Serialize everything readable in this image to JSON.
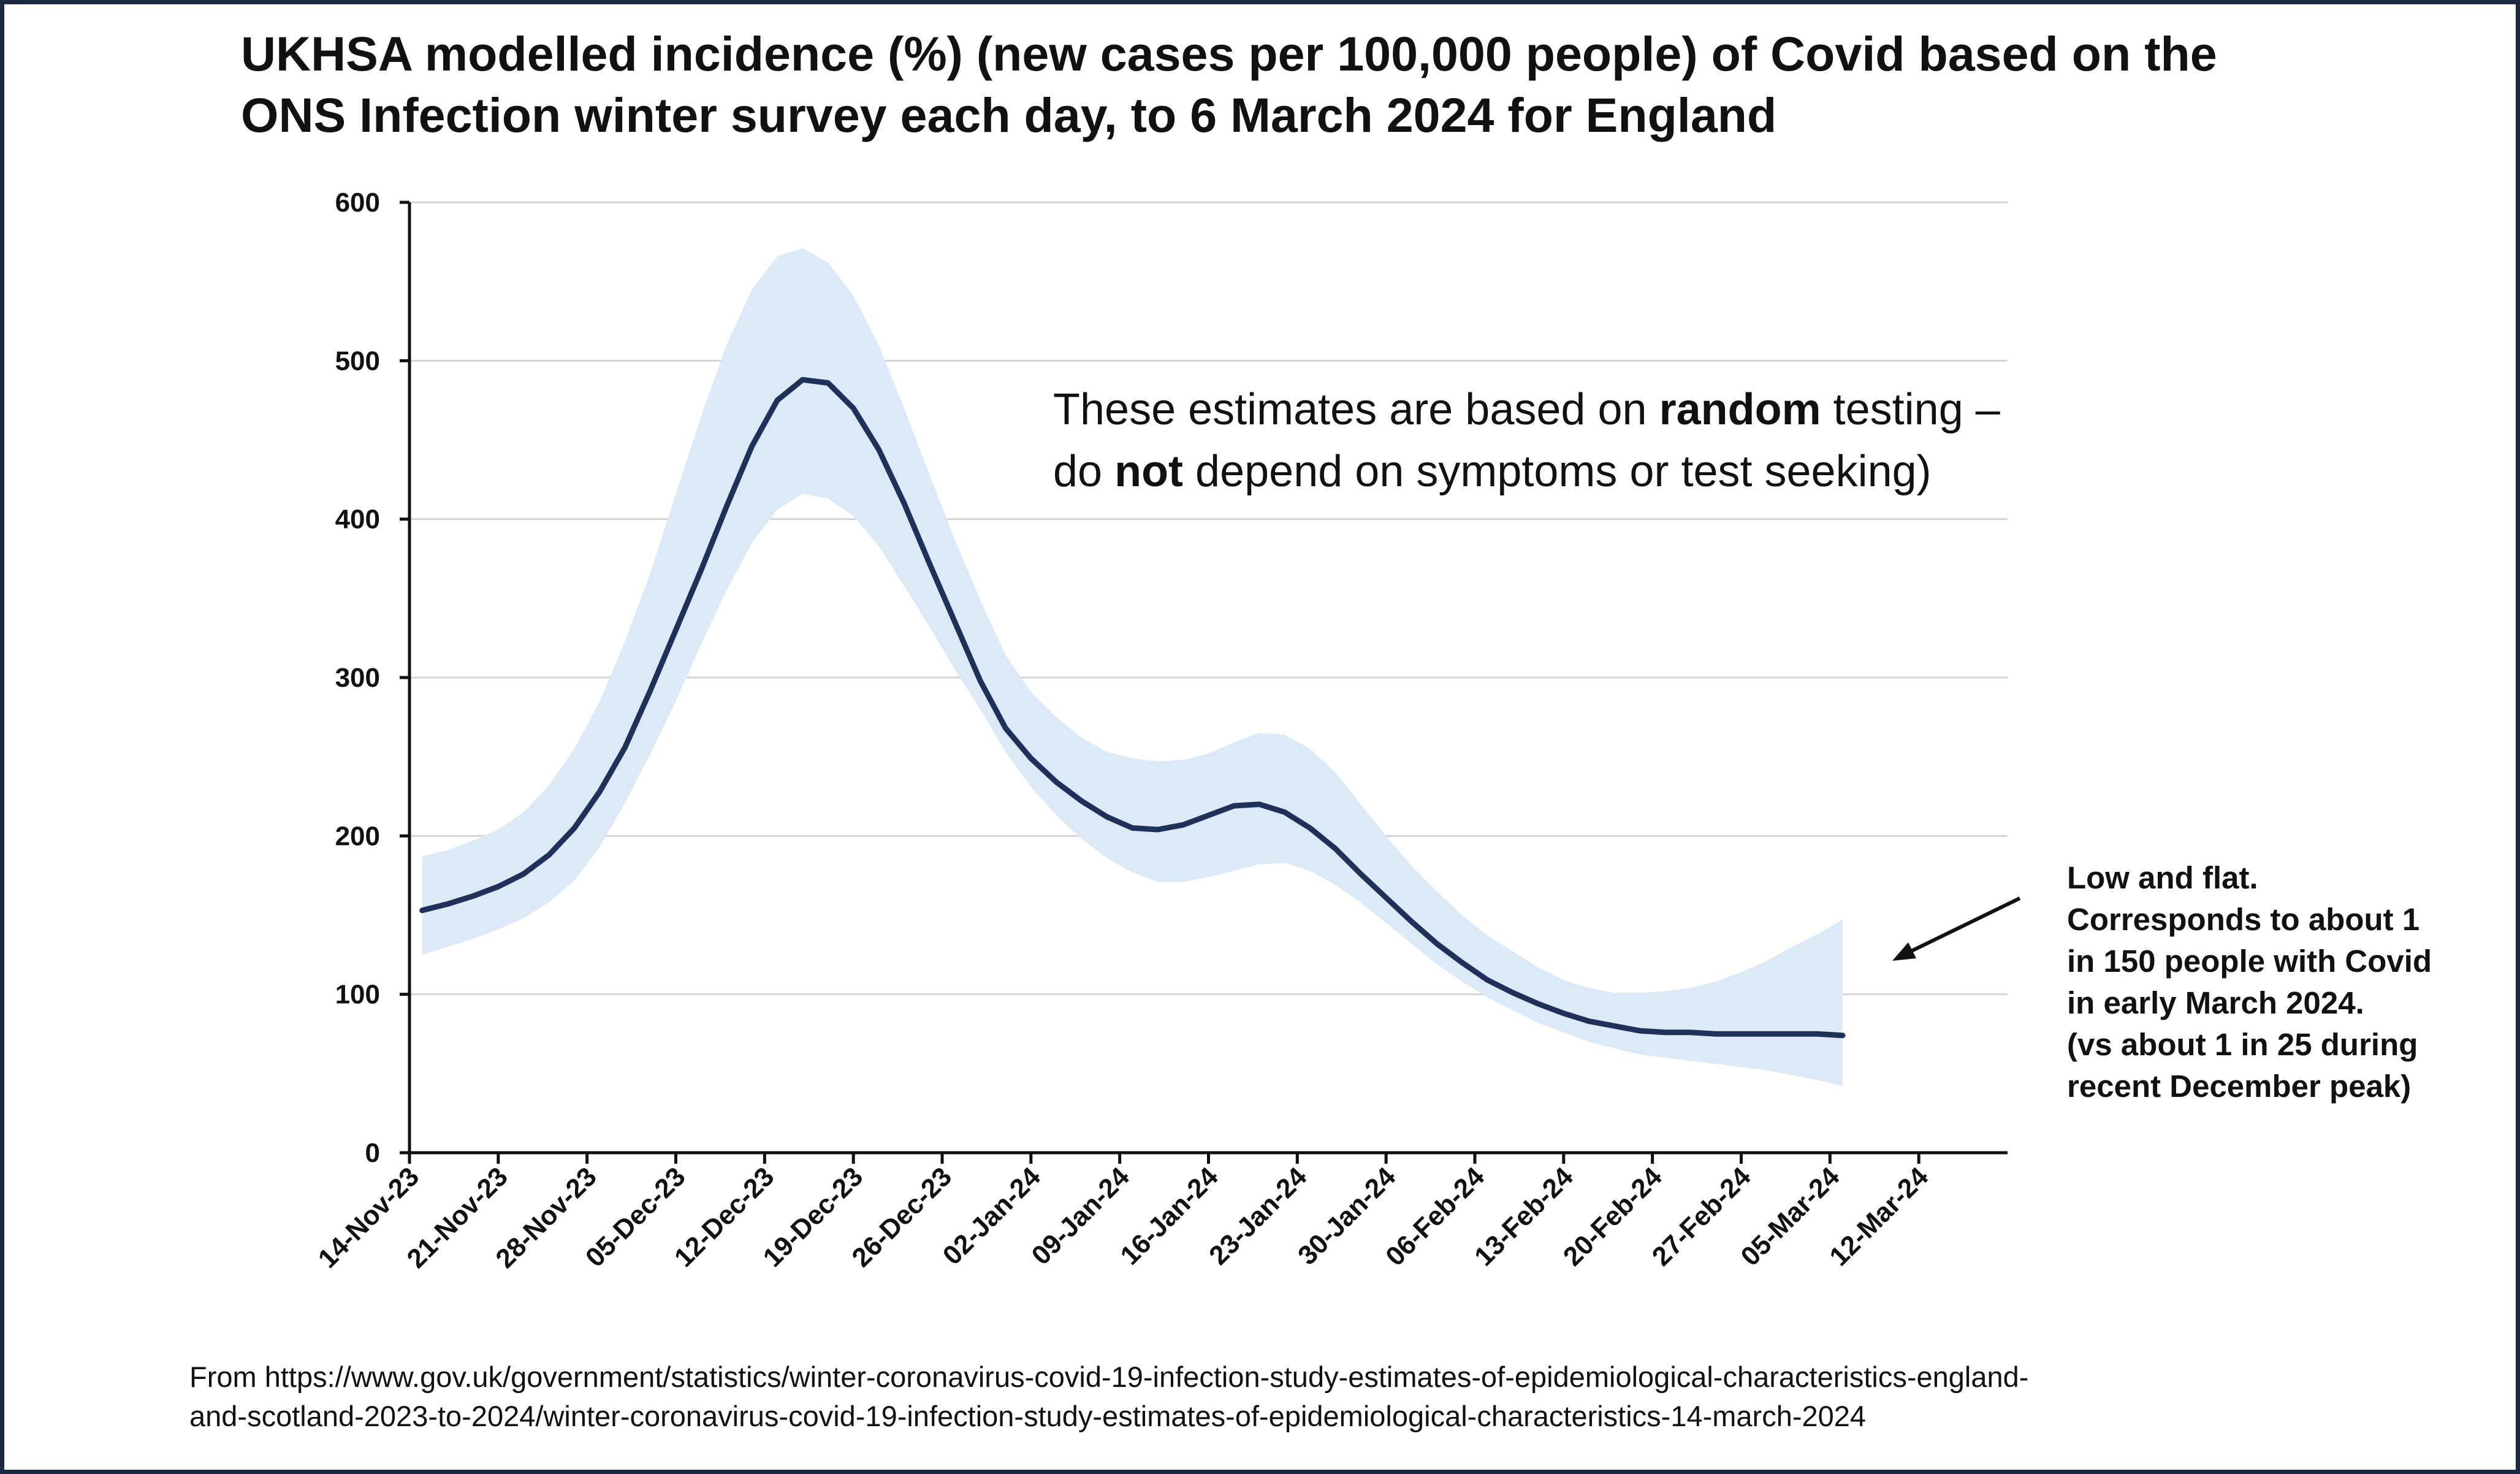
{
  "title_lines": [
    "UKHSA modelled incidence (%) (new cases per 100,000 people) of Covid based on the",
    "ONS Infection winter survey each day, to 6 March 2024 for England"
  ],
  "annotation": {
    "line1_pre": "These estimates are based on ",
    "line1_bold": "random",
    "line1_post": " testing –",
    "line2_pre": "do ",
    "line2_bold": "not",
    "line2_post": " depend on symptoms or test seeking)"
  },
  "side_note_lines": [
    "Low and flat.",
    "Corresponds to about 1",
    "in 150 people with Covid",
    "in early March 2024.",
    "(vs about 1 in 25 during",
    "recent December peak)"
  ],
  "source_lines": [
    "From https://www.gov.uk/government/statistics/winter-coronavirus-covid-19-infection-study-estimates-of-epidemiological-characteristics-england-",
    "and-scotland-2023-to-2024/winter-coronavirus-covid-19-infection-study-estimates-of-epidemiological-characteristics-14-march-2024"
  ],
  "colors": {
    "line": "#1f3159",
    "band": "#dce9f7",
    "grid": "#d4d4d4",
    "axis": "#111111",
    "frame": "#1a2a40"
  },
  "chart_data": {
    "type": "line",
    "title": "UKHSA modelled incidence (%) (new cases per 100,000 people) of Covid based on the ONS Infection winter survey each day, to 6 March 2024 for England",
    "xlabel": "",
    "ylabel": "",
    "ylim": [
      0,
      600
    ],
    "yticks": [
      0,
      100,
      200,
      300,
      400,
      500,
      600
    ],
    "xlim": [
      "2023-11-14",
      "2024-03-19"
    ],
    "xtick_labels": [
      "14-Nov-23",
      "21-Nov-23",
      "28-Nov-23",
      "05-Dec-23",
      "12-Dec-23",
      "19-Dec-23",
      "26-Dec-23",
      "02-Jan-24",
      "09-Jan-24",
      "16-Jan-24",
      "23-Jan-24",
      "30-Jan-24",
      "06-Feb-24",
      "13-Feb-24",
      "20-Feb-24",
      "27-Feb-24",
      "05-Mar-24",
      "12-Mar-24"
    ],
    "grid": true,
    "legend": "none",
    "series": [
      {
        "x": [
          "2023-11-15",
          "2023-11-17",
          "2023-11-19",
          "2023-11-21",
          "2023-11-23",
          "2023-11-25",
          "2023-11-27",
          "2023-11-29",
          "2023-12-01",
          "2023-12-03",
          "2023-12-05",
          "2023-12-07",
          "2023-12-09",
          "2023-12-11",
          "2023-12-13",
          "2023-12-15",
          "2023-12-17",
          "2023-12-19",
          "2023-12-21",
          "2023-12-23",
          "2023-12-25",
          "2023-12-27",
          "2023-12-29",
          "2023-12-31",
          "2024-01-02",
          "2024-01-04",
          "2024-01-06",
          "2024-01-08",
          "2024-01-10",
          "2024-01-12",
          "2024-01-14",
          "2024-01-16",
          "2024-01-18",
          "2024-01-20",
          "2024-01-22",
          "2024-01-24",
          "2024-01-26",
          "2024-01-28",
          "2024-01-30",
          "2024-02-01",
          "2024-02-03",
          "2024-02-05",
          "2024-02-07",
          "2024-02-09",
          "2024-02-11",
          "2024-02-13",
          "2024-02-15",
          "2024-02-17",
          "2024-02-19",
          "2024-02-21",
          "2024-02-23",
          "2024-02-25",
          "2024-02-27",
          "2024-02-29",
          "2024-03-02",
          "2024-03-04",
          "2024-03-06"
        ],
        "y": [
          153,
          157,
          162,
          168,
          176,
          188,
          205,
          228,
          256,
          292,
          330,
          368,
          408,
          446,
          475,
          488,
          486,
          470,
          444,
          410,
          372,
          335,
          298,
          268,
          249,
          234,
          222,
          212,
          205,
          204,
          207,
          213,
          219,
          220,
          215,
          205,
          192,
          176,
          161,
          146,
          132,
          120,
          109,
          101,
          94,
          88,
          83,
          80,
          77,
          76,
          76,
          75,
          75,
          75,
          75,
          75,
          74
        ],
        "lower": [
          125,
          130,
          135,
          141,
          148,
          158,
          172,
          193,
          221,
          252,
          285,
          321,
          355,
          385,
          406,
          416,
          413,
          402,
          383,
          358,
          332,
          305,
          280,
          253,
          231,
          213,
          198,
          186,
          177,
          171,
          171,
          174,
          178,
          182,
          183,
          178,
          169,
          158,
          145,
          132,
          119,
          108,
          98,
          90,
          82,
          76,
          70,
          66,
          62,
          60,
          58,
          56,
          54,
          52,
          49,
          46,
          42
        ],
        "upper": [
          187,
          191,
          197,
          204,
          215,
          232,
          255,
          285,
          323,
          366,
          416,
          465,
          510,
          545,
          566,
          571,
          562,
          541,
          510,
          470,
          428,
          387,
          349,
          314,
          291,
          275,
          262,
          253,
          249,
          247,
          248,
          252,
          259,
          265,
          264,
          255,
          240,
          220,
          200,
          181,
          165,
          150,
          137,
          127,
          117,
          109,
          104,
          101,
          101,
          102,
          104,
          108,
          114,
          121,
          130,
          138,
          147
        ]
      }
    ]
  }
}
